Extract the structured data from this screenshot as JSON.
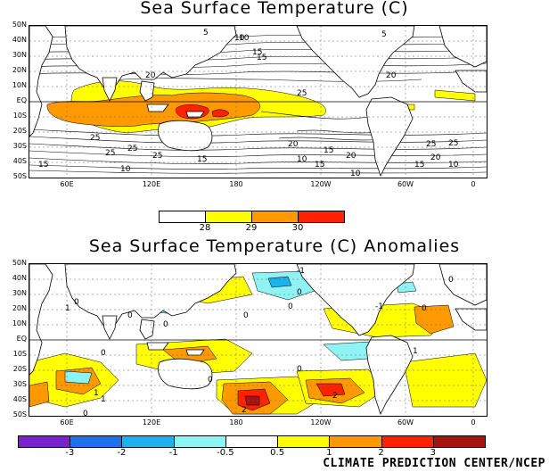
{
  "top_map": {
    "title": "Sea Surface Temperature (C)",
    "lat_labels": [
      "50N",
      "40N",
      "30N",
      "20N",
      "10N",
      "EQ",
      "10S",
      "20S",
      "30S",
      "40S",
      "50S"
    ],
    "lon_labels": [
      "60E",
      "120E",
      "180",
      "120W",
      "60W",
      "0"
    ],
    "contour_labels": [
      "5",
      "10",
      "15",
      "20",
      "25",
      "25",
      "25",
      "25",
      "20",
      "20",
      "25",
      "15",
      "15",
      "10",
      "15",
      "10",
      "10",
      "15",
      "20",
      "25",
      "5",
      "10",
      "15",
      "20",
      "25",
      "15",
      "10"
    ],
    "colorbar": {
      "ticks": [
        "28",
        "29",
        "30"
      ],
      "colors": [
        "#ffffff",
        "#ffff00",
        "#ff9900",
        "#ff2200"
      ]
    }
  },
  "bottom_map": {
    "title": "Sea Surface Temperature (C) Anomalies",
    "lat_labels": [
      "50N",
      "40N",
      "30N",
      "20N",
      "10N",
      "EQ",
      "10S",
      "20S",
      "30S",
      "40S",
      "50S"
    ],
    "lon_labels": [
      "60E",
      "120E",
      "180",
      "120W",
      "60W",
      "0"
    ],
    "contour_labels": [
      "0",
      "0",
      "-1",
      "0",
      "1",
      "0",
      "0",
      "1",
      "0",
      "0",
      "1",
      "0",
      "0",
      "2",
      "0",
      "1",
      "2",
      "0",
      "-1",
      "0"
    ],
    "colorbar": {
      "ticks": [
        "-3",
        "-2",
        "-1",
        "-0.5",
        "0.5",
        "1",
        "2",
        "3"
      ],
      "colors": [
        "#7a22cc",
        "#1f6ff0",
        "#1cb2ee",
        "#8ff3f3",
        "#ffffff",
        "#ffff00",
        "#ff9900",
        "#ff2200",
        "#aa1111"
      ]
    }
  },
  "credit": "CLIMATE PREDICTION CENTER/NCEP"
}
